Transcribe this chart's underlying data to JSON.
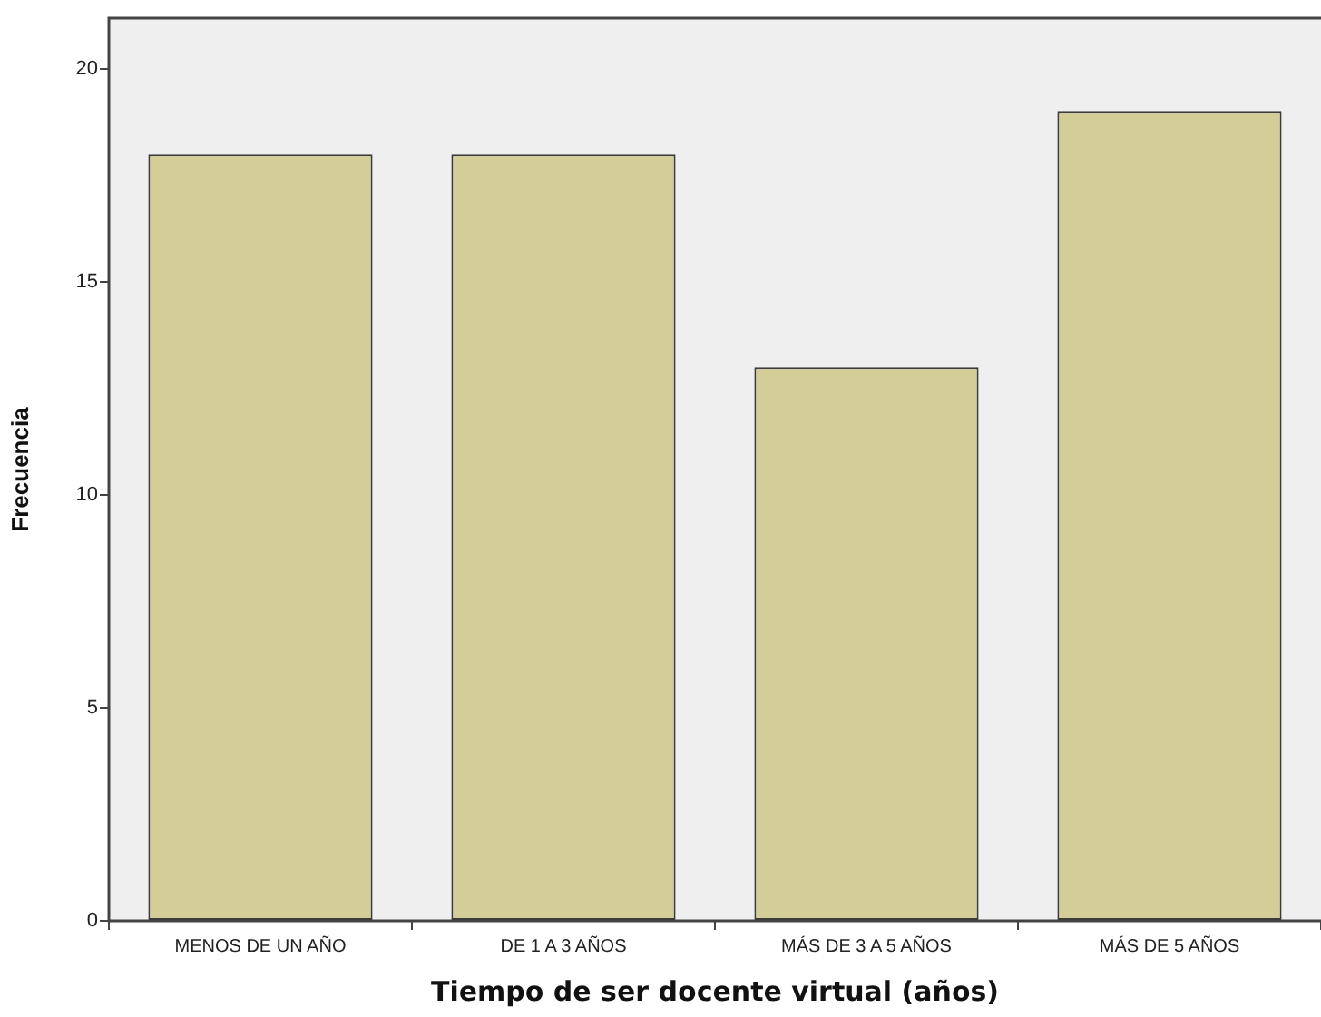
{
  "chart_data": {
    "type": "bar",
    "xlabel": "Tiempo de ser docente virtual (años)",
    "ylabel": "Frecuencia",
    "categories": [
      "MENOS DE UN AÑO",
      "DE 1 A 3 AÑOS",
      "MÁS DE 3 A 5 AÑOS",
      "MÁS DE 5 AÑOS"
    ],
    "values": [
      18,
      18,
      13,
      19
    ],
    "color": "#d3ce97",
    "ylim": [
      0,
      21.2
    ],
    "yticks": [
      0,
      5,
      10,
      15,
      20
    ],
    "grid": false,
    "legend": false
  }
}
